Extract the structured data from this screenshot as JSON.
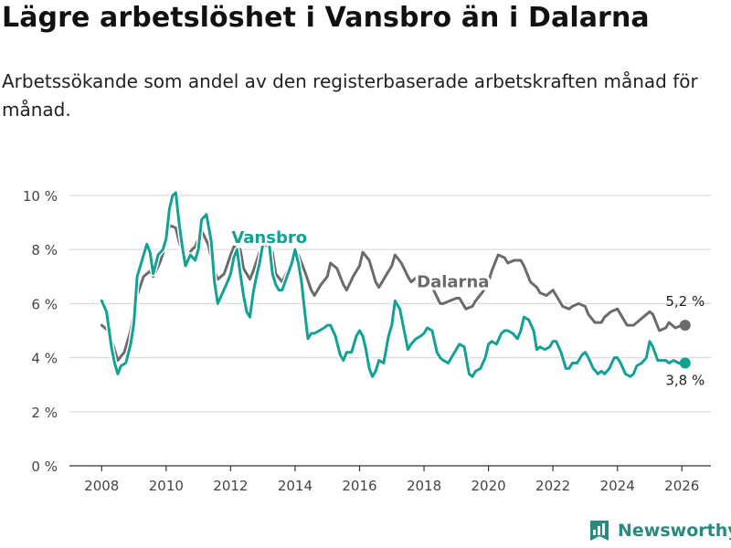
{
  "title": "Lägre arbetslöshet i Vansbro än i Dalarna",
  "subtitle": "Arbetssökande som andel av den registerbaserade arbetskraften månad för månad.",
  "brand": {
    "name": "Newsworthy",
    "icon": "newsworthy-logo-icon",
    "color": "#2a8a80"
  },
  "colors": {
    "vansbro": "#12a195",
    "dalarna": "#6b6b6b",
    "grid": "#d9d9d9",
    "axis": "#555555"
  },
  "chart_data": {
    "type": "line",
    "title": "Lägre arbetslöshet i Vansbro än i Dalarna",
    "xlabel": "",
    "ylabel": "",
    "xlim": [
      2007.0,
      2026.9
    ],
    "ylim": [
      0,
      10
    ],
    "yticks": [
      0,
      2,
      4,
      6,
      8,
      10
    ],
    "ytick_labels": [
      "0 %",
      "2 %",
      "4 %",
      "6 %",
      "8 %",
      "10 %"
    ],
    "xticks": [
      2008,
      2010,
      2012,
      2014,
      2016,
      2018,
      2020,
      2022,
      2024,
      2026
    ],
    "xtick_labels": [
      "2008",
      "2010",
      "2012",
      "2014",
      "2016",
      "2018",
      "2020",
      "2022",
      "2024",
      "2026"
    ],
    "grid": true,
    "series": [
      {
        "name": "Dalarna",
        "label": "Dalarna",
        "end_label": "5,2 %",
        "points": [
          [
            2008.0,
            5.2
          ],
          [
            2008.2,
            5.0
          ],
          [
            2008.4,
            4.3
          ],
          [
            2008.5,
            3.9
          ],
          [
            2008.7,
            4.2
          ],
          [
            2008.9,
            5.0
          ],
          [
            2009.1,
            6.3
          ],
          [
            2009.3,
            7.0
          ],
          [
            2009.5,
            7.2
          ],
          [
            2009.6,
            7.0
          ],
          [
            2009.8,
            7.5
          ],
          [
            2010.0,
            8.2
          ],
          [
            2010.1,
            8.9
          ],
          [
            2010.3,
            8.8
          ],
          [
            2010.4,
            8.3
          ],
          [
            2010.6,
            7.6
          ],
          [
            2010.8,
            8.0
          ],
          [
            2010.9,
            8.1
          ],
          [
            2011.1,
            8.7
          ],
          [
            2011.3,
            8.2
          ],
          [
            2011.5,
            7.2
          ],
          [
            2011.6,
            6.9
          ],
          [
            2011.8,
            7.1
          ],
          [
            2012.0,
            7.8
          ],
          [
            2012.1,
            8.1
          ],
          [
            2012.3,
            8.0
          ],
          [
            2012.4,
            7.3
          ],
          [
            2012.6,
            6.9
          ],
          [
            2012.7,
            7.2
          ],
          [
            2012.9,
            7.9
          ],
          [
            2013.1,
            8.2
          ],
          [
            2013.3,
            7.9
          ],
          [
            2013.4,
            7.1
          ],
          [
            2013.6,
            6.8
          ],
          [
            2013.8,
            7.3
          ],
          [
            2014.0,
            7.8
          ],
          [
            2014.1,
            7.8
          ],
          [
            2014.3,
            7.2
          ],
          [
            2014.5,
            6.5
          ],
          [
            2014.6,
            6.3
          ],
          [
            2014.8,
            6.7
          ],
          [
            2015.0,
            7.0
          ],
          [
            2015.1,
            7.5
          ],
          [
            2015.3,
            7.3
          ],
          [
            2015.5,
            6.7
          ],
          [
            2015.6,
            6.5
          ],
          [
            2015.8,
            7.0
          ],
          [
            2016.0,
            7.4
          ],
          [
            2016.1,
            7.9
          ],
          [
            2016.3,
            7.6
          ],
          [
            2016.5,
            6.8
          ],
          [
            2016.6,
            6.6
          ],
          [
            2016.8,
            7.0
          ],
          [
            2017.0,
            7.4
          ],
          [
            2017.1,
            7.8
          ],
          [
            2017.3,
            7.5
          ],
          [
            2017.5,
            7.0
          ],
          [
            2017.6,
            6.8
          ],
          [
            2017.8,
            7.0
          ],
          [
            2018.0,
            7.1
          ],
          [
            2018.1,
            7.0
          ],
          [
            2018.3,
            6.5
          ],
          [
            2018.5,
            6.0
          ],
          [
            2018.6,
            6.0
          ],
          [
            2018.8,
            6.1
          ],
          [
            2019.0,
            6.2
          ],
          [
            2019.1,
            6.2
          ],
          [
            2019.3,
            5.8
          ],
          [
            2019.5,
            5.9
          ],
          [
            2019.6,
            6.1
          ],
          [
            2019.8,
            6.4
          ],
          [
            2020.0,
            6.8
          ],
          [
            2020.1,
            7.2
          ],
          [
            2020.3,
            7.8
          ],
          [
            2020.5,
            7.7
          ],
          [
            2020.6,
            7.5
          ],
          [
            2020.8,
            7.6
          ],
          [
            2021.0,
            7.6
          ],
          [
            2021.1,
            7.4
          ],
          [
            2021.3,
            6.8
          ],
          [
            2021.5,
            6.6
          ],
          [
            2021.6,
            6.4
          ],
          [
            2021.8,
            6.3
          ],
          [
            2022.0,
            6.5
          ],
          [
            2022.1,
            6.3
          ],
          [
            2022.3,
            5.9
          ],
          [
            2022.5,
            5.8
          ],
          [
            2022.6,
            5.9
          ],
          [
            2022.8,
            6.0
          ],
          [
            2023.0,
            5.9
          ],
          [
            2023.1,
            5.6
          ],
          [
            2023.3,
            5.3
          ],
          [
            2023.5,
            5.3
          ],
          [
            2023.6,
            5.5
          ],
          [
            2023.8,
            5.7
          ],
          [
            2024.0,
            5.8
          ],
          [
            2024.1,
            5.6
          ],
          [
            2024.3,
            5.2
          ],
          [
            2024.5,
            5.2
          ],
          [
            2024.6,
            5.3
          ],
          [
            2024.8,
            5.5
          ],
          [
            2025.0,
            5.7
          ],
          [
            2025.1,
            5.6
          ],
          [
            2025.3,
            5.0
          ],
          [
            2025.5,
            5.1
          ],
          [
            2025.6,
            5.3
          ],
          [
            2025.8,
            5.1
          ],
          [
            2026.0,
            5.2
          ],
          [
            2026.1,
            5.2
          ]
        ]
      },
      {
        "name": "Vansbro",
        "label": "Vansbro",
        "end_label": "3,8 %",
        "points": [
          [
            2008.0,
            6.1
          ],
          [
            2008.15,
            5.7
          ],
          [
            2008.3,
            4.4
          ],
          [
            2008.4,
            3.8
          ],
          [
            2008.5,
            3.4
          ],
          [
            2008.6,
            3.7
          ],
          [
            2008.75,
            3.8
          ],
          [
            2008.9,
            4.5
          ],
          [
            2009.0,
            5.3
          ],
          [
            2009.1,
            7.0
          ],
          [
            2009.25,
            7.6
          ],
          [
            2009.4,
            8.2
          ],
          [
            2009.5,
            7.9
          ],
          [
            2009.6,
            7.1
          ],
          [
            2009.75,
            7.8
          ],
          [
            2009.9,
            8.0
          ],
          [
            2010.0,
            8.4
          ],
          [
            2010.1,
            9.5
          ],
          [
            2010.2,
            10.0
          ],
          [
            2010.3,
            10.1
          ],
          [
            2010.4,
            9.0
          ],
          [
            2010.5,
            8.1
          ],
          [
            2010.6,
            7.4
          ],
          [
            2010.75,
            7.8
          ],
          [
            2010.9,
            7.6
          ],
          [
            2011.0,
            8.0
          ],
          [
            2011.1,
            9.1
          ],
          [
            2011.25,
            9.3
          ],
          [
            2011.4,
            8.3
          ],
          [
            2011.5,
            6.8
          ],
          [
            2011.6,
            6.0
          ],
          [
            2011.75,
            6.4
          ],
          [
            2011.9,
            6.8
          ],
          [
            2012.0,
            7.1
          ],
          [
            2012.1,
            7.7
          ],
          [
            2012.2,
            8.0
          ],
          [
            2012.3,
            7.1
          ],
          [
            2012.4,
            6.3
          ],
          [
            2012.5,
            5.7
          ],
          [
            2012.6,
            5.5
          ],
          [
            2012.7,
            6.4
          ],
          [
            2012.8,
            7.0
          ],
          [
            2012.9,
            7.5
          ],
          [
            2013.0,
            8.2
          ],
          [
            2013.1,
            8.6
          ],
          [
            2013.2,
            8.2
          ],
          [
            2013.3,
            7.1
          ],
          [
            2013.4,
            6.7
          ],
          [
            2013.5,
            6.5
          ],
          [
            2013.6,
            6.5
          ],
          [
            2013.75,
            7.0
          ],
          [
            2013.9,
            7.5
          ],
          [
            2014.0,
            8.0
          ],
          [
            2014.1,
            7.5
          ],
          [
            2014.2,
            6.8
          ],
          [
            2014.3,
            5.7
          ],
          [
            2014.4,
            4.7
          ],
          [
            2014.5,
            4.9
          ],
          [
            2014.6,
            4.9
          ],
          [
            2014.75,
            5.0
          ],
          [
            2014.9,
            5.1
          ],
          [
            2015.0,
            5.2
          ],
          [
            2015.1,
            5.2
          ],
          [
            2015.25,
            4.8
          ],
          [
            2015.4,
            4.1
          ],
          [
            2015.5,
            3.9
          ],
          [
            2015.6,
            4.2
          ],
          [
            2015.75,
            4.2
          ],
          [
            2015.9,
            4.8
          ],
          [
            2016.0,
            5.0
          ],
          [
            2016.1,
            4.8
          ],
          [
            2016.2,
            4.3
          ],
          [
            2016.3,
            3.6
          ],
          [
            2016.4,
            3.3
          ],
          [
            2016.5,
            3.5
          ],
          [
            2016.6,
            3.9
          ],
          [
            2016.75,
            3.8
          ],
          [
            2016.9,
            4.8
          ],
          [
            2017.0,
            5.2
          ],
          [
            2017.1,
            6.1
          ],
          [
            2017.25,
            5.8
          ],
          [
            2017.4,
            4.9
          ],
          [
            2017.5,
            4.3
          ],
          [
            2017.6,
            4.5
          ],
          [
            2017.75,
            4.7
          ],
          [
            2017.9,
            4.8
          ],
          [
            2018.0,
            4.9
          ],
          [
            2018.1,
            5.1
          ],
          [
            2018.25,
            5.0
          ],
          [
            2018.4,
            4.2
          ],
          [
            2018.5,
            4.0
          ],
          [
            2018.6,
            3.9
          ],
          [
            2018.75,
            3.8
          ],
          [
            2018.9,
            4.1
          ],
          [
            2019.0,
            4.3
          ],
          [
            2019.1,
            4.5
          ],
          [
            2019.25,
            4.4
          ],
          [
            2019.4,
            3.4
          ],
          [
            2019.5,
            3.3
          ],
          [
            2019.6,
            3.5
          ],
          [
            2019.75,
            3.6
          ],
          [
            2019.9,
            4.0
          ],
          [
            2020.0,
            4.5
          ],
          [
            2020.1,
            4.6
          ],
          [
            2020.25,
            4.5
          ],
          [
            2020.4,
            4.9
          ],
          [
            2020.5,
            5.0
          ],
          [
            2020.6,
            5.0
          ],
          [
            2020.75,
            4.9
          ],
          [
            2020.9,
            4.7
          ],
          [
            2021.0,
            5.0
          ],
          [
            2021.1,
            5.5
          ],
          [
            2021.25,
            5.4
          ],
          [
            2021.4,
            5.0
          ],
          [
            2021.5,
            4.3
          ],
          [
            2021.6,
            4.4
          ],
          [
            2021.75,
            4.3
          ],
          [
            2021.9,
            4.4
          ],
          [
            2022.0,
            4.6
          ],
          [
            2022.1,
            4.6
          ],
          [
            2022.25,
            4.2
          ],
          [
            2022.4,
            3.6
          ],
          [
            2022.5,
            3.6
          ],
          [
            2022.6,
            3.8
          ],
          [
            2022.75,
            3.8
          ],
          [
            2022.9,
            4.1
          ],
          [
            2023.0,
            4.2
          ],
          [
            2023.1,
            4.0
          ],
          [
            2023.25,
            3.6
          ],
          [
            2023.4,
            3.4
          ],
          [
            2023.5,
            3.5
          ],
          [
            2023.6,
            3.4
          ],
          [
            2023.75,
            3.6
          ],
          [
            2023.9,
            4.0
          ],
          [
            2024.0,
            4.0
          ],
          [
            2024.1,
            3.8
          ],
          [
            2024.25,
            3.4
          ],
          [
            2024.4,
            3.3
          ],
          [
            2024.5,
            3.4
          ],
          [
            2024.6,
            3.7
          ],
          [
            2024.75,
            3.8
          ],
          [
            2024.9,
            4.0
          ],
          [
            2025.0,
            4.6
          ],
          [
            2025.1,
            4.4
          ],
          [
            2025.25,
            3.9
          ],
          [
            2025.4,
            3.9
          ],
          [
            2025.5,
            3.9
          ],
          [
            2025.6,
            3.8
          ],
          [
            2025.75,
            3.9
          ],
          [
            2025.9,
            3.8
          ],
          [
            2026.1,
            3.8
          ]
        ]
      }
    ]
  }
}
